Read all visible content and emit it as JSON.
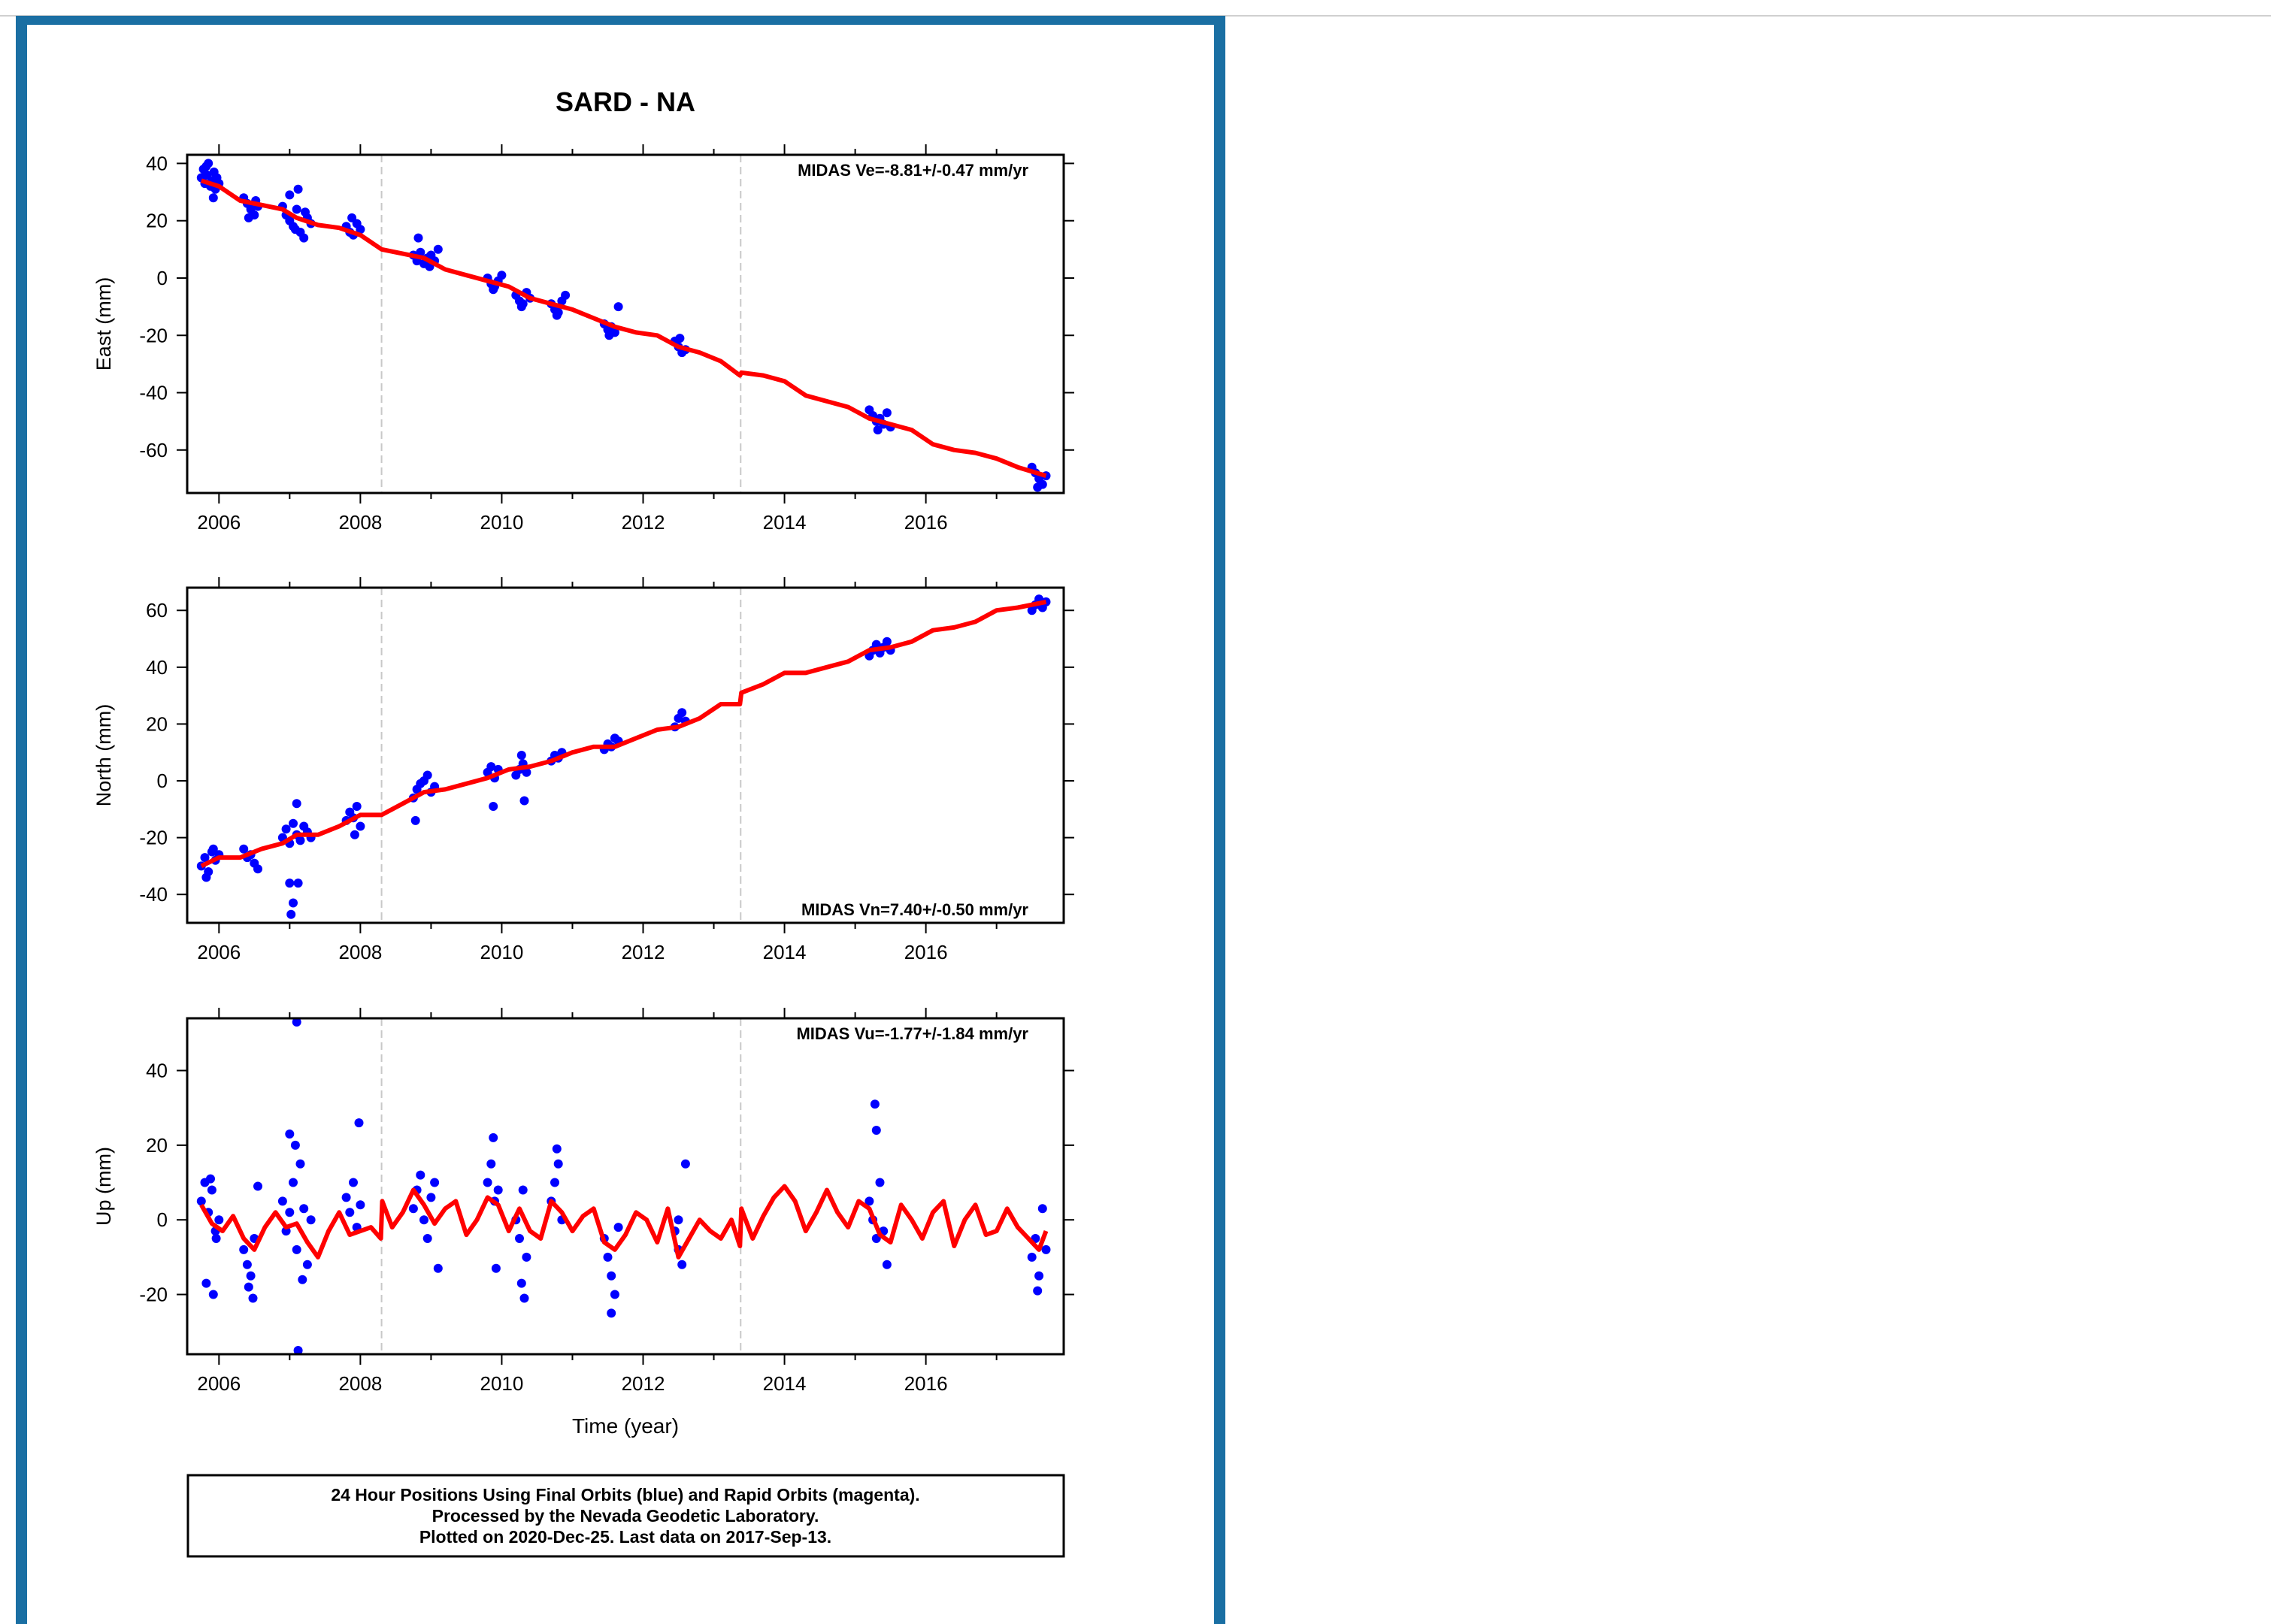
{
  "colors": {
    "frame": "#1a6fa3",
    "points": "#0000ff",
    "model": "#ff0000",
    "event_lines": "#c8c8c8"
  },
  "figure_title": "SARD - NA",
  "footer": {
    "line1": "24 Hour Positions Using Final Orbits (blue) and Rapid Orbits (magenta).",
    "line2": "Processed by the Nevada Geodetic Laboratory.",
    "line3": "Plotted on 2020-Dec-25. Last data on 2017-Sep-13."
  },
  "chart_data": [
    {
      "type": "scatter",
      "title": "SARD - NA",
      "xlabel": "",
      "ylabel": "East (mm)",
      "xlim": [
        2005.55,
        2017.95
      ],
      "ylim": [
        -75,
        43
      ],
      "xticks": [
        2006,
        2008,
        2010,
        2012,
        2014,
        2016
      ],
      "yticks": [
        40,
        20,
        0,
        -20,
        -40,
        -60
      ],
      "annotation": "MIDAS Ve=-8.81+/-0.47 mm/yr",
      "annotation_position": "top-right",
      "event_lines_x": [
        2008.3,
        2013.38
      ],
      "grid": false,
      "series": [
        {
          "type": "scatter",
          "color": "#0000ff",
          "x": [
            2005.75,
            2005.78,
            2005.8,
            2005.83,
            2005.85,
            2005.88,
            2005.9,
            2005.93,
            2005.95,
            2005.97,
            2006.0,
            2005.82,
            2005.92,
            2006.35,
            2006.4,
            2006.45,
            2006.5,
            2006.55,
            2006.42,
            2006.52,
            2006.9,
            2006.95,
            2007.0,
            2007.05,
            2007.1,
            2007.15,
            2007.2,
            2007.25,
            2007.3,
            2007.0,
            2007.12,
            2007.22,
            2007.08,
            2007.8,
            2007.85,
            2007.9,
            2007.95,
            2008.0,
            2007.88,
            2008.75,
            2008.8,
            2008.85,
            2008.9,
            2008.95,
            2009.0,
            2009.05,
            2009.1,
            2008.82,
            2008.98,
            2009.8,
            2009.85,
            2009.9,
            2009.95,
            2010.0,
            2009.88,
            2010.2,
            2010.25,
            2010.3,
            2010.35,
            2010.4,
            2010.28,
            2010.7,
            2010.75,
            2010.8,
            2010.85,
            2010.9,
            2010.78,
            2011.45,
            2011.5,
            2011.55,
            2011.6,
            2011.65,
            2011.52,
            2012.45,
            2012.5,
            2012.55,
            2012.6,
            2012.52,
            2015.2,
            2015.25,
            2015.3,
            2015.35,
            2015.4,
            2015.45,
            2015.5,
            2015.32,
            2017.5,
            2017.55,
            2017.6,
            2017.65,
            2017.7,
            2017.58
          ],
          "y": [
            35,
            38,
            33,
            36,
            40,
            32,
            34,
            37,
            31,
            35,
            33,
            39,
            28,
            28,
            26,
            24,
            22,
            25,
            21,
            27,
            25,
            22,
            20,
            18,
            24,
            16,
            14,
            21,
            19,
            29,
            31,
            23,
            17,
            18,
            16,
            15,
            19,
            17,
            21,
            8,
            6,
            9,
            5,
            7,
            8,
            6,
            10,
            14,
            4,
            0,
            -2,
            -3,
            -1,
            1,
            -4,
            -6,
            -8,
            -9,
            -5,
            -7,
            -10,
            -9,
            -11,
            -12,
            -8,
            -6,
            -13,
            -16,
            -18,
            -17,
            -19,
            -10,
            -20,
            -22,
            -24,
            -26,
            -25,
            -21,
            -46,
            -48,
            -50,
            -49,
            -51,
            -47,
            -52,
            -53,
            -66,
            -68,
            -70,
            -72,
            -69,
            -73
          ]
        },
        {
          "type": "line",
          "color": "#ff0000",
          "x": [
            2005.75,
            2006.0,
            2006.3,
            2006.6,
            2006.9,
            2007.1,
            2007.4,
            2007.7,
            2008.0,
            2008.3,
            2008.6,
            2008.9,
            2009.2,
            2009.5,
            2009.8,
            2010.1,
            2010.4,
            2010.7,
            2011.0,
            2011.3,
            2011.6,
            2011.9,
            2012.2,
            2012.5,
            2012.8,
            2013.1,
            2013.37,
            2013.39,
            2013.7,
            2014.0,
            2014.3,
            2014.6,
            2014.9,
            2015.2,
            2015.5,
            2015.8,
            2016.1,
            2016.4,
            2016.7,
            2017.0,
            2017.3,
            2017.7
          ],
          "y": [
            34,
            32,
            27,
            25.5,
            24,
            21,
            18.5,
            17.5,
            15,
            10,
            8.5,
            7,
            3,
            1,
            -1,
            -3,
            -7,
            -9,
            -11,
            -14,
            -17,
            -19,
            -20,
            -24,
            -26,
            -29,
            -34,
            -33,
            -34,
            -36,
            -41,
            -43,
            -45,
            -49,
            -51,
            -53,
            -58,
            -60,
            -61,
            -63,
            -66,
            -69
          ]
        }
      ]
    },
    {
      "type": "scatter",
      "xlabel": "",
      "ylabel": "North (mm)",
      "xlim": [
        2005.55,
        2017.95
      ],
      "ylim": [
        -50,
        68
      ],
      "xticks": [
        2006,
        2008,
        2010,
        2012,
        2014,
        2016
      ],
      "yticks": [
        60,
        40,
        20,
        0,
        -20,
        -40
      ],
      "annotation": "MIDAS Vn=7.40+/-0.50 mm/yr",
      "annotation_position": "bottom-right",
      "event_lines_x": [
        2008.3,
        2013.38
      ],
      "grid": false,
      "series": [
        {
          "type": "scatter",
          "color": "#0000ff",
          "x": [
            2005.75,
            2005.8,
            2005.85,
            2005.9,
            2005.95,
            2006.0,
            2005.82,
            2005.92,
            2006.35,
            2006.4,
            2006.45,
            2006.5,
            2006.55,
            2006.9,
            2006.95,
            2007.0,
            2007.05,
            2007.1,
            2007.15,
            2007.2,
            2007.25,
            2007.3,
            2007.0,
            2007.05,
            2007.1,
            2007.12,
            2007.02,
            2007.8,
            2007.85,
            2007.9,
            2007.95,
            2008.0,
            2007.92,
            2008.75,
            2008.8,
            2008.85,
            2008.9,
            2008.95,
            2009.0,
            2009.05,
            2008.78,
            2009.8,
            2009.85,
            2009.9,
            2009.95,
            2009.88,
            2010.2,
            2010.25,
            2010.3,
            2010.35,
            2010.28,
            2010.32,
            2010.7,
            2010.75,
            2010.8,
            2010.85,
            2011.45,
            2011.5,
            2011.55,
            2011.6,
            2011.65,
            2012.45,
            2012.5,
            2012.55,
            2012.6,
            2015.2,
            2015.25,
            2015.3,
            2015.35,
            2015.4,
            2015.45,
            2015.5,
            2017.5,
            2017.55,
            2017.6,
            2017.65,
            2017.7
          ],
          "y": [
            -30,
            -27,
            -32,
            -25,
            -28,
            -26,
            -34,
            -24,
            -24,
            -27,
            -26,
            -29,
            -31,
            -20,
            -17,
            -22,
            -15,
            -19,
            -21,
            -16,
            -18,
            -20,
            -36,
            -43,
            -8,
            -36,
            -47,
            -14,
            -11,
            -13,
            -9,
            -16,
            -19,
            -6,
            -3,
            -1,
            0,
            2,
            -4,
            -2,
            -14,
            3,
            5,
            1,
            4,
            -9,
            2,
            4,
            6,
            3,
            9,
            -7,
            7,
            9,
            8,
            10,
            11,
            13,
            12,
            15,
            14,
            19,
            22,
            24,
            21,
            44,
            46,
            48,
            45,
            47,
            49,
            46,
            60,
            62,
            64,
            61,
            63
          ]
        },
        {
          "type": "line",
          "color": "#ff0000",
          "x": [
            2005.75,
            2006.0,
            2006.3,
            2006.6,
            2006.9,
            2007.1,
            2007.4,
            2007.7,
            2008.0,
            2008.3,
            2008.6,
            2008.9,
            2009.2,
            2009.5,
            2009.8,
            2010.1,
            2010.4,
            2010.7,
            2011.0,
            2011.3,
            2011.6,
            2011.9,
            2012.2,
            2012.5,
            2012.8,
            2013.1,
            2013.37,
            2013.39,
            2013.7,
            2014.0,
            2014.3,
            2014.6,
            2014.9,
            2015.2,
            2015.5,
            2015.8,
            2016.1,
            2016.4,
            2016.7,
            2017.0,
            2017.3,
            2017.7
          ],
          "y": [
            -30,
            -27,
            -27,
            -24,
            -22,
            -19,
            -19,
            -16,
            -12,
            -12,
            -8,
            -4,
            -3,
            -1,
            1,
            4,
            5,
            7,
            10,
            12,
            12,
            15,
            18,
            19,
            22,
            27,
            27,
            31,
            34,
            38,
            38,
            40,
            42,
            46,
            47,
            49,
            53,
            54,
            56,
            60,
            61,
            63
          ]
        }
      ]
    },
    {
      "type": "scatter",
      "xlabel": "Time (year)",
      "ylabel": "Up (mm)",
      "xlim": [
        2005.55,
        2017.95
      ],
      "ylim": [
        -36,
        54
      ],
      "xticks": [
        2006,
        2008,
        2010,
        2012,
        2014,
        2016
      ],
      "yticks": [
        40,
        20,
        0,
        -20
      ],
      "annotation": "MIDAS Vu=-1.77+/-1.84 mm/yr",
      "annotation_position": "top-right",
      "event_lines_x": [
        2008.3,
        2013.38
      ],
      "grid": false,
      "series": [
        {
          "type": "scatter",
          "color": "#0000ff",
          "x": [
            2005.75,
            2005.8,
            2005.85,
            2005.9,
            2005.95,
            2006.0,
            2005.82,
            2005.92,
            2005.88,
            2005.96,
            2006.35,
            2006.4,
            2006.45,
            2006.5,
            2006.55,
            2006.42,
            2006.48,
            2006.9,
            2006.95,
            2007.0,
            2007.05,
            2007.1,
            2007.15,
            2007.2,
            2007.25,
            2007.3,
            2007.1,
            2007.12,
            2007.0,
            2007.08,
            2007.18,
            2007.8,
            2007.85,
            2007.9,
            2007.95,
            2008.0,
            2007.98,
            2008.75,
            2008.8,
            2008.85,
            2008.9,
            2008.95,
            2009.0,
            2009.05,
            2009.1,
            2009.8,
            2009.85,
            2009.9,
            2009.95,
            2009.88,
            2009.92,
            2010.2,
            2010.25,
            2010.3,
            2010.35,
            2010.28,
            2010.32,
            2010.7,
            2010.75,
            2010.8,
            2010.85,
            2010.78,
            2011.45,
            2011.5,
            2011.55,
            2011.6,
            2011.65,
            2011.55,
            2012.45,
            2012.5,
            2012.55,
            2012.6,
            2012.5,
            2015.2,
            2015.25,
            2015.3,
            2015.35,
            2015.4,
            2015.45,
            2015.28,
            2015.3,
            2017.5,
            2017.55,
            2017.6,
            2017.65,
            2017.7,
            2017.58
          ],
          "y": [
            5,
            10,
            2,
            8,
            -3,
            0,
            -17,
            -20,
            11,
            -5,
            -8,
            -12,
            -15,
            -5,
            9,
            -18,
            -21,
            5,
            -3,
            2,
            10,
            -8,
            15,
            3,
            -12,
            0,
            53,
            -35,
            23,
            20,
            -16,
            6,
            2,
            10,
            -2,
            4,
            26,
            3,
            8,
            12,
            0,
            -5,
            6,
            10,
            -13,
            10,
            15,
            5,
            8,
            22,
            -13,
            0,
            -5,
            8,
            -10,
            -17,
            -21,
            5,
            10,
            15,
            0,
            19,
            -5,
            -10,
            -15,
            -20,
            -2,
            -25,
            -3,
            -8,
            -12,
            15,
            0,
            5,
            0,
            -5,
            10,
            -3,
            -12,
            31,
            24,
            -10,
            -5,
            -15,
            3,
            -8,
            -19
          ]
        },
        {
          "type": "line",
          "color": "#ff0000",
          "x": [
            2005.75,
            2005.9,
            2006.05,
            2006.2,
            2006.35,
            2006.5,
            2006.65,
            2006.8,
            2006.95,
            2007.1,
            2007.25,
            2007.4,
            2007.55,
            2007.7,
            2007.85,
            2008.0,
            2008.15,
            2008.29,
            2008.31,
            2008.45,
            2008.6,
            2008.75,
            2008.9,
            2009.05,
            2009.2,
            2009.35,
            2009.5,
            2009.65,
            2009.8,
            2009.95,
            2010.1,
            2010.25,
            2010.4,
            2010.55,
            2010.7,
            2010.85,
            2011.0,
            2011.15,
            2011.3,
            2011.45,
            2011.6,
            2011.75,
            2011.9,
            2012.05,
            2012.2,
            2012.35,
            2012.5,
            2012.65,
            2012.8,
            2012.95,
            2013.1,
            2013.25,
            2013.37,
            2013.39,
            2013.55,
            2013.7,
            2013.85,
            2014.0,
            2014.15,
            2014.3,
            2014.45,
            2014.6,
            2014.75,
            2014.9,
            2015.05,
            2015.2,
            2015.35,
            2015.5,
            2015.65,
            2015.8,
            2015.95,
            2016.1,
            2016.25,
            2016.4,
            2016.55,
            2016.7,
            2016.85,
            2017.0,
            2017.15,
            2017.3,
            2017.45,
            2017.6,
            2017.7
          ],
          "y": [
            4,
            -1,
            -3,
            1,
            -5,
            -8,
            -2,
            2,
            -2,
            -1,
            -6,
            -10,
            -3,
            2,
            -4,
            -3,
            -2,
            -5,
            5,
            -2,
            2,
            8,
            4,
            -1,
            3,
            5,
            -4,
            0,
            6,
            4,
            -3,
            3,
            -3,
            -5,
            5,
            2,
            -3,
            1,
            3,
            -6,
            -8,
            -4,
            2,
            0,
            -6,
            3,
            -10,
            -5,
            0,
            -3,
            -5,
            0,
            -7,
            3,
            -5,
            1,
            6,
            9,
            5,
            -3,
            2,
            8,
            2,
            -2,
            5,
            3,
            -4,
            -6,
            4,
            0,
            -5,
            2,
            5,
            -7,
            0,
            4,
            -4,
            -3,
            3,
            -2,
            -5,
            -8,
            -3
          ]
        }
      ]
    }
  ]
}
